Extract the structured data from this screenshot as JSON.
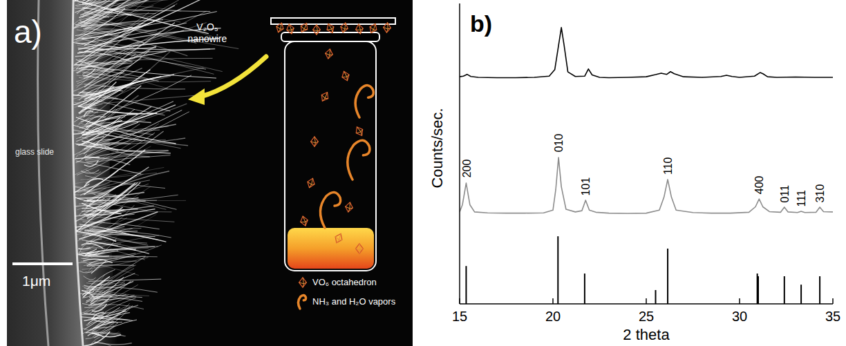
{
  "panel_a": {
    "label": "a)",
    "arrow_label": "V₂O₅ nanowire",
    "substrate_label": "glass slide",
    "scale_bar": "1μm",
    "legend": [
      {
        "icon": "octahedron",
        "text": "VO₆ octahedron"
      },
      {
        "icon": "vapor",
        "text": "NH₃ and H₂O vapors"
      }
    ]
  },
  "chart_data": {
    "type": "line",
    "title": "b)",
    "xlabel": "2 theta",
    "ylabel": "Counts/sec.",
    "xlim": [
      15,
      35
    ],
    "ylim": [
      0,
      100
    ],
    "xticks": [
      15,
      20,
      25,
      30,
      35
    ],
    "tick_labels": "x",
    "series": [
      {
        "color": "#000000",
        "x": [
          15,
          15.2,
          15.4,
          15.6,
          16,
          17,
          18,
          19,
          19.8,
          20.1,
          20.3,
          20.45,
          20.6,
          20.8,
          21.2,
          21.7,
          21.9,
          22.1,
          22.5,
          23,
          24,
          25,
          25.5,
          25.8,
          26.1,
          26.3,
          26.5,
          27,
          28,
          29,
          29.3,
          29.6,
          30,
          30.8,
          31.1,
          31.25,
          31.5,
          32,
          33,
          34,
          35
        ],
        "values": [
          75.6,
          75.8,
          76.4,
          75.7,
          75.4,
          75.3,
          75.3,
          75.4,
          75.8,
          78,
          86,
          92,
          86,
          77.2,
          75.7,
          75.8,
          78.2,
          76.2,
          75.4,
          75.3,
          75.4,
          75.6,
          76.3,
          76.8,
          76.4,
          77.3,
          76.6,
          75.6,
          75.4,
          75.7,
          76.1,
          75.7,
          75.4,
          75.8,
          77,
          76.6,
          75.6,
          75.4,
          75.5,
          75.4,
          75.4
        ]
      },
      {
        "color": "#8c8c8c",
        "x": [
          15,
          15.15,
          15.35,
          15.55,
          15.8,
          16.5,
          17.5,
          18.5,
          19.5,
          20,
          20.15,
          20.3,
          20.45,
          20.7,
          21.2,
          21.55,
          21.75,
          21.95,
          22.3,
          23,
          24,
          25,
          25.7,
          25.95,
          26.15,
          26.35,
          26.6,
          27.5,
          28.5,
          29.5,
          30.5,
          30.85,
          31.05,
          31.25,
          31.6,
          32.2,
          32.4,
          32.6,
          33.1,
          33.3,
          33.5,
          34.1,
          34.3,
          34.5,
          35
        ],
        "values": [
          30.6,
          33,
          40.2,
          33,
          30.6,
          30.3,
          30.2,
          30.2,
          30.3,
          31.2,
          38,
          48.7,
          39,
          31.5,
          30.6,
          31,
          34.5,
          31.2,
          30.5,
          30.2,
          30.1,
          30.2,
          31.2,
          35.5,
          41.4,
          35.5,
          31.2,
          30.4,
          30.2,
          30.2,
          30.5,
          32.3,
          34.9,
          32.3,
          30.7,
          30.5,
          32.2,
          30.6,
          30.4,
          30.8,
          30.4,
          30.5,
          32.2,
          30.7,
          30.6
        ]
      },
      {
        "type": "stick",
        "color": "#000000",
        "x": [
          15.35,
          20.27,
          21.7,
          25.5,
          26.15,
          30.95,
          31.0,
          32.4,
          33.3,
          34.3
        ],
        "values": [
          12.6,
          22.5,
          10.1,
          4.6,
          18.4,
          10.1,
          9.2,
          9.2,
          6.4,
          9.2
        ]
      }
    ],
    "annotations": [
      {
        "text": "200",
        "x": 15.35,
        "y": 42
      },
      {
        "text": "010",
        "x": 20.3,
        "y": 50.5
      },
      {
        "text": "101",
        "x": 21.75,
        "y": 36
      },
      {
        "text": "110",
        "x": 26.15,
        "y": 43
      },
      {
        "text": "400",
        "x": 31.05,
        "y": 36.5
      },
      {
        "text": "011",
        "x": 32.4,
        "y": 33.7
      },
      {
        "text": "111",
        "x": 33.3,
        "y": 32.3
      },
      {
        "text": "310",
        "x": 34.3,
        "y": 33.7
      }
    ]
  }
}
